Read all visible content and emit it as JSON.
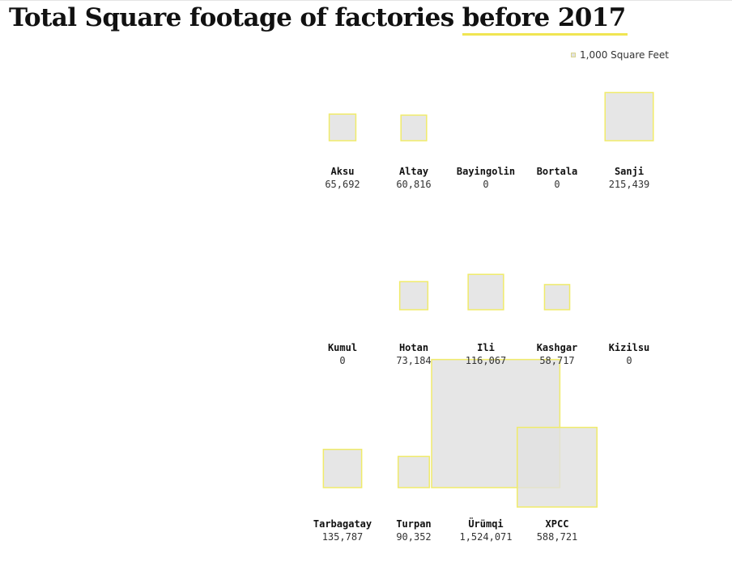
{
  "title": {
    "main": "Total Square footage of factories",
    "highlight": "before 2017"
  },
  "legend": {
    "label": "1,000 Square Feet"
  },
  "colors": {
    "square_fill": "#e0e0e0",
    "square_stroke": "#f0eb6a",
    "title_underline": "#f0e552"
  },
  "chart_data": {
    "type": "proportional-square",
    "unit": "square feet",
    "legend_unit_value": 1000,
    "categories": [
      "Aksu",
      "Altay",
      "Bayingolin",
      "Bortala",
      "Sanji",
      "Kumul",
      "Hotan",
      "Ili",
      "Kashgar",
      "Kizilsu",
      "Tarbagatay",
      "Turpan",
      "Ürümqi",
      "XPCC"
    ],
    "values": [
      65692,
      60816,
      0,
      0,
      215439,
      0,
      73184,
      116067,
      58717,
      0,
      135787,
      90352,
      1524071,
      588721
    ],
    "value_labels": [
      "65,692",
      "60,816",
      "0",
      "0",
      "215,439",
      "0",
      "73,184",
      "116,067",
      "58,717",
      "0",
      "135,787",
      "90,352",
      "1,524,071",
      "588,721"
    ]
  }
}
